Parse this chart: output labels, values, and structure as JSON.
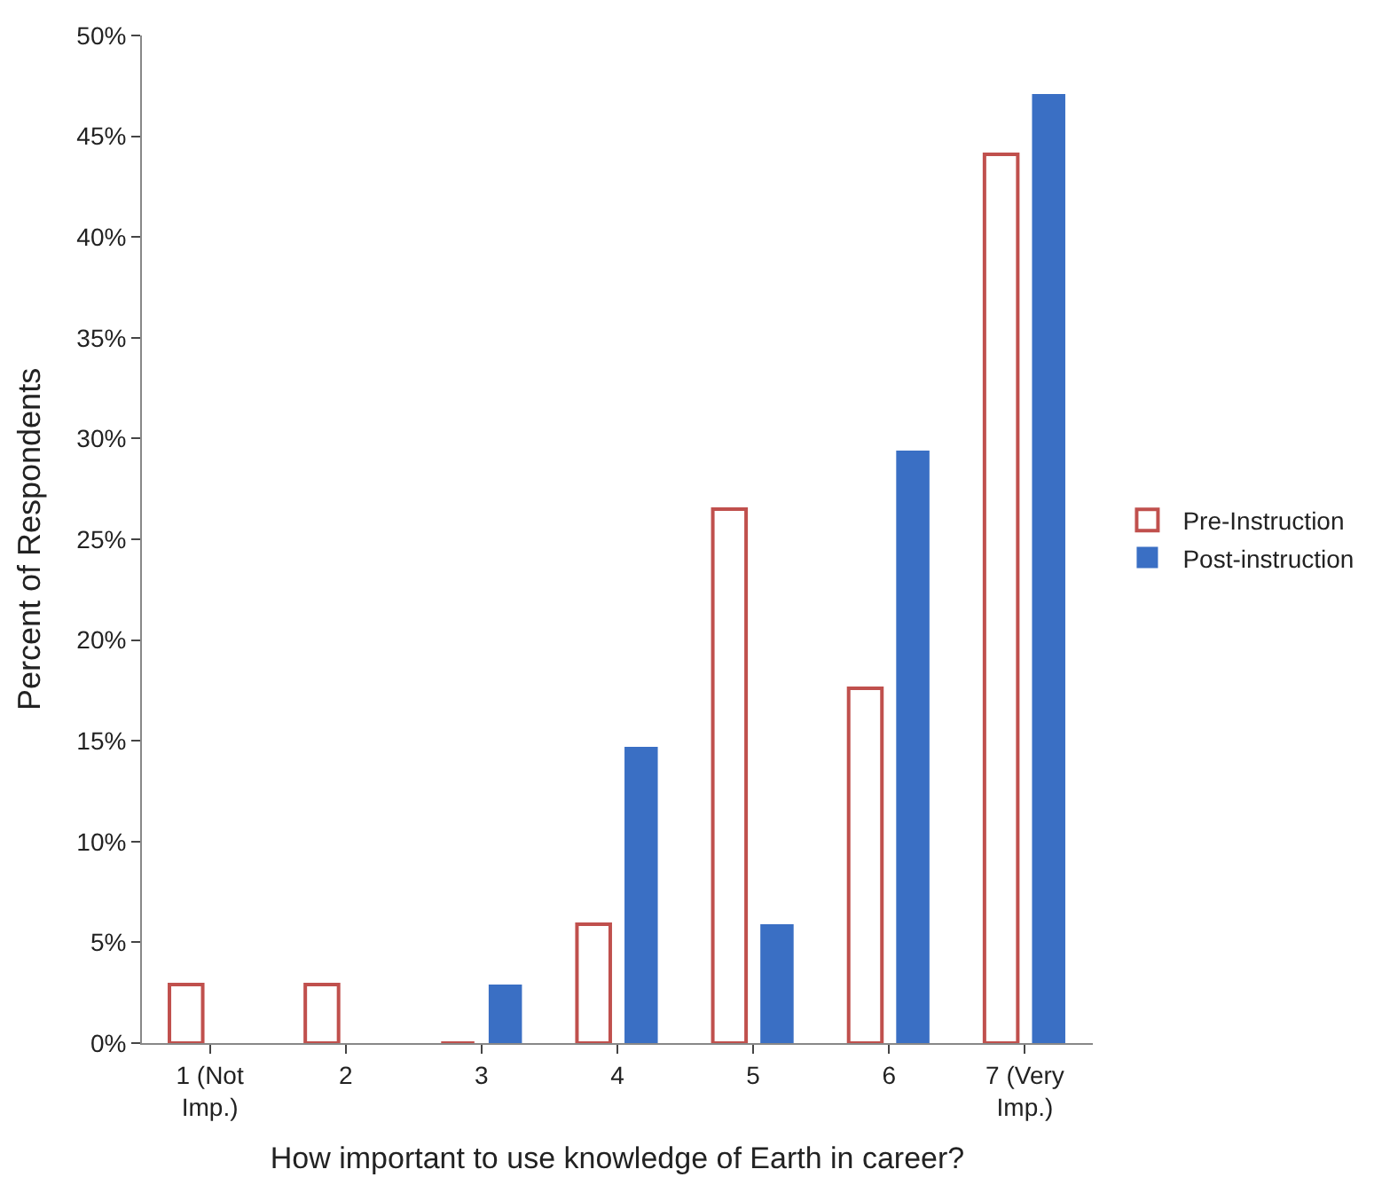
{
  "chart_data": {
    "type": "bar",
    "xlabel": "How important to use knowledge of Earth in career?",
    "ylabel": "Percent of Respondents",
    "categories": [
      "1 (Not\nImp.)",
      "2",
      "3",
      "4",
      "5",
      "6",
      "7 (Very\nImp.)"
    ],
    "series": [
      {
        "name": "Pre-Instruction",
        "color": "#c0504d",
        "values": [
          2.9,
          2.9,
          0,
          5.9,
          26.5,
          17.6,
          44.1
        ]
      },
      {
        "name": "Post-instruction",
        "color": "#3a6fc4",
        "values": [
          0,
          0,
          2.9,
          14.7,
          5.9,
          29.4,
          47.1
        ]
      }
    ],
    "ylim": [
      0,
      50
    ],
    "yticks": [
      {
        "value": 0,
        "label": "0%"
      },
      {
        "value": 5,
        "label": "5%"
      },
      {
        "value": 10,
        "label": "10%"
      },
      {
        "value": 15,
        "label": "15%"
      },
      {
        "value": 20,
        "label": "20%"
      },
      {
        "value": 25,
        "label": "25%"
      },
      {
        "value": 30,
        "label": "30%"
      },
      {
        "value": 35,
        "label": "35%"
      },
      {
        "value": 40,
        "label": "40%"
      },
      {
        "value": 45,
        "label": "45%"
      },
      {
        "value": 50,
        "label": "50%"
      }
    ],
    "legend": "right"
  }
}
